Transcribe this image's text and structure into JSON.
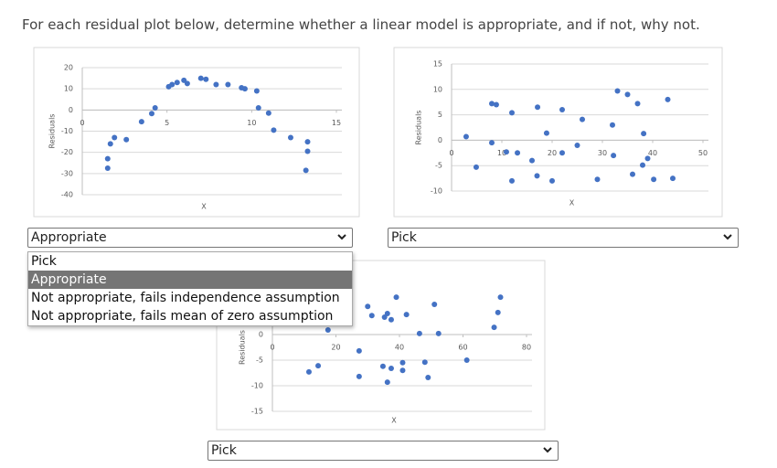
{
  "instruction": "For each residual plot below, determine whether a linear model is appropriate, and if not, why not.",
  "chart_data": [
    {
      "type": "scatter",
      "x_label": "X",
      "y_label": "Residuals",
      "color": "#4472c4",
      "grid": true,
      "xlim": [
        0,
        15
      ],
      "xticks": [
        0,
        5,
        10,
        15
      ],
      "ylim": [
        -40,
        20
      ],
      "yticks": [
        -40,
        -30,
        -20,
        -10,
        0,
        10,
        20
      ],
      "x": [
        1.5,
        1.5,
        1.66,
        1.9,
        2.6,
        3.5,
        4.1,
        4.3,
        5.1,
        5.3,
        5.6,
        6.0,
        6.2,
        7.0,
        7.3,
        7.9,
        8.6,
        9.4,
        9.6,
        10.3,
        10.4,
        11.0,
        11.3,
        12.3,
        13.3,
        13.3,
        13.2
      ],
      "values": [
        -23,
        -27.5,
        -16,
        -13,
        -14,
        -5.5,
        -1.7,
        1,
        11,
        12,
        13,
        14,
        12.5,
        15,
        14.5,
        12,
        12,
        10.5,
        10,
        9,
        1,
        -1.5,
        -9.5,
        -13,
        -15,
        -19.5,
        -28.5
      ]
    },
    {
      "type": "scatter",
      "x_label": "X",
      "y_label": "Residuals",
      "color": "#4472c4",
      "grid": true,
      "xlim": [
        0,
        50
      ],
      "xticks": [
        0,
        10,
        20,
        30,
        40,
        50
      ],
      "ylim": [
        -10,
        15
      ],
      "yticks": [
        -10,
        -5,
        0,
        5,
        10,
        15
      ],
      "x": [
        2.9,
        4.9,
        8,
        8.9,
        8,
        10.9,
        12,
        12,
        13.1,
        16,
        17.1,
        17,
        18.9,
        20,
        22,
        22,
        25,
        26,
        29,
        32,
        32.2,
        33,
        35,
        36,
        37,
        38.2,
        38,
        39,
        40.2,
        43,
        44
      ],
      "values": [
        0.7,
        -5.3,
        7.2,
        7,
        -0.5,
        -2.3,
        5.4,
        -8,
        -2.5,
        -4,
        6.5,
        -7,
        1.4,
        -8,
        6,
        -2.5,
        -1,
        4.1,
        -7.7,
        3,
        -3,
        9.7,
        9,
        -6.7,
        7.2,
        1.3,
        -4.9,
        -3.6,
        -7.7,
        8,
        -7.5
      ]
    },
    {
      "type": "scatter",
      "x_label": "X",
      "y_label": "Residuals",
      "color": "#4472c4",
      "grid": true,
      "xlim": [
        0,
        80
      ],
      "xticks": [
        0,
        20,
        40,
        60,
        80
      ],
      "ylim": [
        -15,
        10
      ],
      "yticks": [
        -15,
        -10,
        -5,
        0
      ],
      "x": [
        17.5,
        11.5,
        14.4,
        27.3,
        27.3,
        30,
        31.3,
        34.8,
        35.3,
        36.2,
        37.4,
        36.2,
        37.4,
        39,
        41,
        41,
        42.2,
        46.3,
        48,
        49,
        51,
        52.3,
        61.2,
        69.8,
        71,
        71.8
      ],
      "values": [
        0.9,
        -7.3,
        -6.1,
        -3.2,
        -8.2,
        5.5,
        3.7,
        -6.2,
        3.4,
        4.1,
        2.9,
        -9.3,
        -6.6,
        7.3,
        -5.5,
        -7,
        3.9,
        0.2,
        -5.4,
        -8.4,
        5.9,
        0.2,
        -5,
        1.4,
        4.3,
        7.3
      ]
    }
  ],
  "selects": [
    {
      "selected": "Appropriate"
    },
    {
      "selected": "Pick"
    },
    {
      "selected": "Pick"
    }
  ],
  "options": [
    "Pick",
    "Appropriate",
    "Not appropriate, fails independence assumption",
    "Not appropriate, fails mean of zero assumption"
  ]
}
